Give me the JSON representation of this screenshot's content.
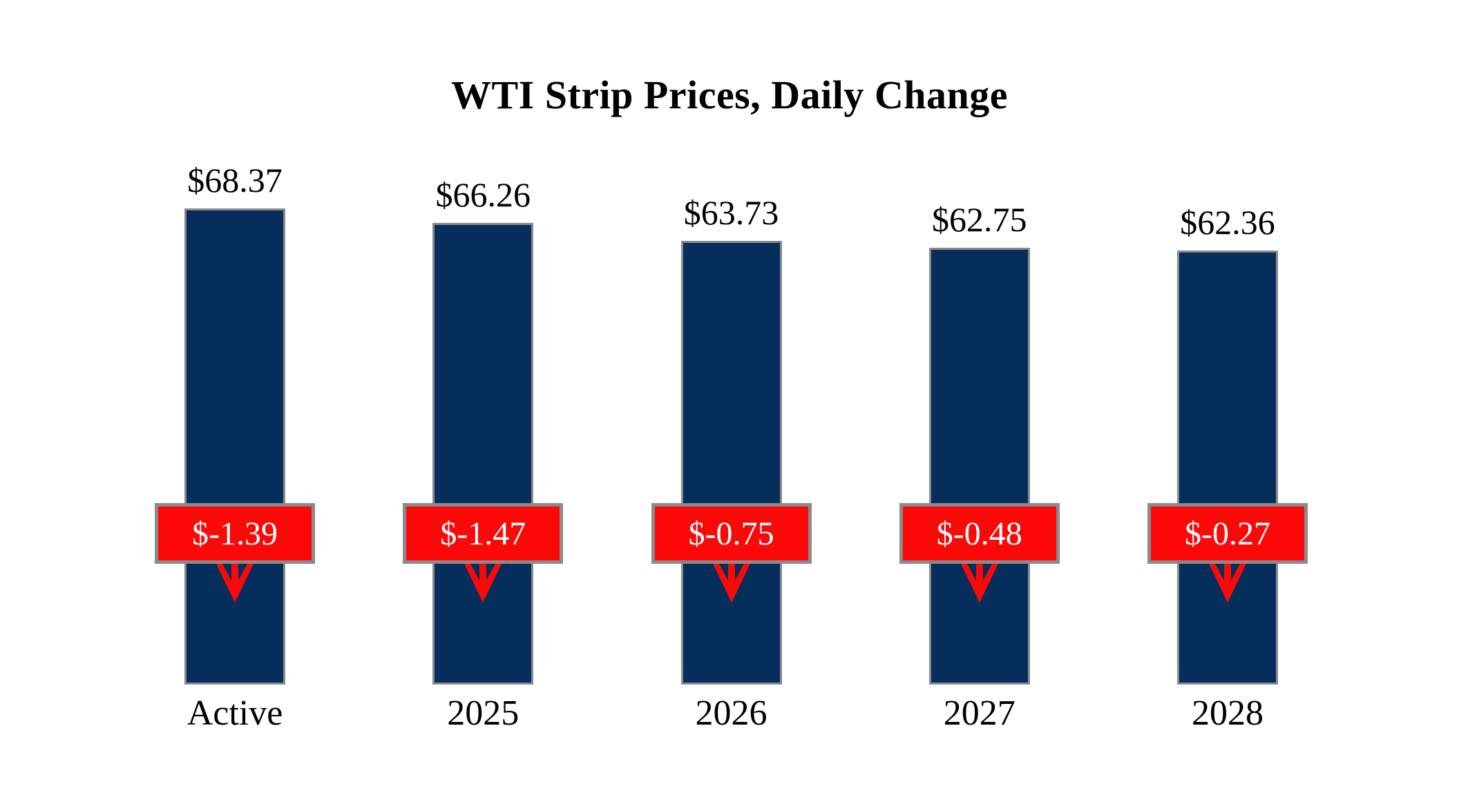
{
  "title": "WTI Strip Prices, Daily Change",
  "chart_data": {
    "type": "bar",
    "title": "WTI Strip Prices, Daily Change",
    "categories": [
      "Active",
      "2025",
      "2026",
      "2027",
      "2028"
    ],
    "series": [
      {
        "name": "WTI Strip Price",
        "values": [
          68.37,
          66.26,
          63.73,
          62.75,
          62.36
        ]
      },
      {
        "name": "Daily Change",
        "values": [
          -1.39,
          -1.47,
          -0.75,
          -0.48,
          -0.27
        ]
      }
    ],
    "value_labels": [
      "$68.37",
      "$66.26",
      "$63.73",
      "$62.75",
      "$62.36"
    ],
    "change_labels": [
      "$-1.39",
      "$-1.47",
      "$-0.75",
      "$-0.48",
      "$-0.27"
    ],
    "ylim": [
      0,
      68.37
    ],
    "grid": false,
    "legend_position": "none",
    "xlabel": "",
    "ylabel": "",
    "colors": {
      "background": "#FFFFFF",
      "title_text": "#000000",
      "label_text": "#000000",
      "bar_fill": "#052E5C",
      "bar_border": "#8A8A8A",
      "badge_fill": "#FB0909",
      "badge_border": "#8A8A8A",
      "badge_text": "#FFFFFF",
      "arrow": "#FB0909"
    },
    "icons": [
      "down-arrow-icon"
    ]
  }
}
